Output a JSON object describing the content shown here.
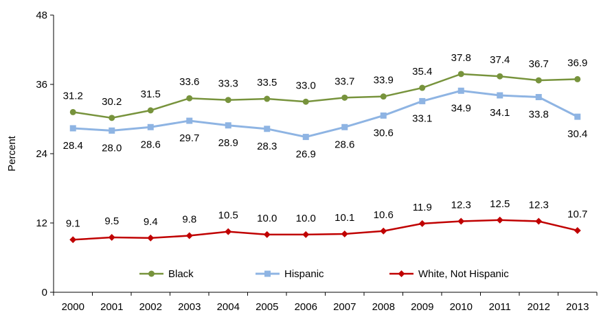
{
  "chart_data": {
    "type": "line",
    "title": "",
    "xlabel": "",
    "ylabel": "Percent",
    "ylim": [
      0,
      48
    ],
    "yticks": [
      0,
      12,
      24,
      36,
      48
    ],
    "grid": false,
    "legend_placement": "bottom-inside",
    "categories": [
      "2000",
      "2001",
      "2002",
      "2003",
      "2004",
      "2005",
      "2006",
      "2007",
      "2008",
      "2009",
      "2010",
      "2011",
      "2012",
      "2013"
    ],
    "series": [
      {
        "name": "Black",
        "color": "#77933c",
        "marker": "circle",
        "label_position": "above",
        "values": [
          31.2,
          30.2,
          31.5,
          33.6,
          33.3,
          33.5,
          33.0,
          33.7,
          33.9,
          35.4,
          37.8,
          37.4,
          36.7,
          36.9
        ]
      },
      {
        "name": "Hispanic",
        "color": "#8eb4e3",
        "marker": "square",
        "label_position": "below",
        "values": [
          28.4,
          28.0,
          28.6,
          29.7,
          28.9,
          28.3,
          26.9,
          28.6,
          30.6,
          33.1,
          34.9,
          34.1,
          33.8,
          30.4
        ]
      },
      {
        "name": "White, Not Hispanic",
        "color": "#c00000",
        "marker": "diamond",
        "label_position": "above",
        "values": [
          9.1,
          9.5,
          9.4,
          9.8,
          10.5,
          10.0,
          10.0,
          10.1,
          10.6,
          11.9,
          12.3,
          12.5,
          12.3,
          10.7
        ]
      }
    ]
  }
}
